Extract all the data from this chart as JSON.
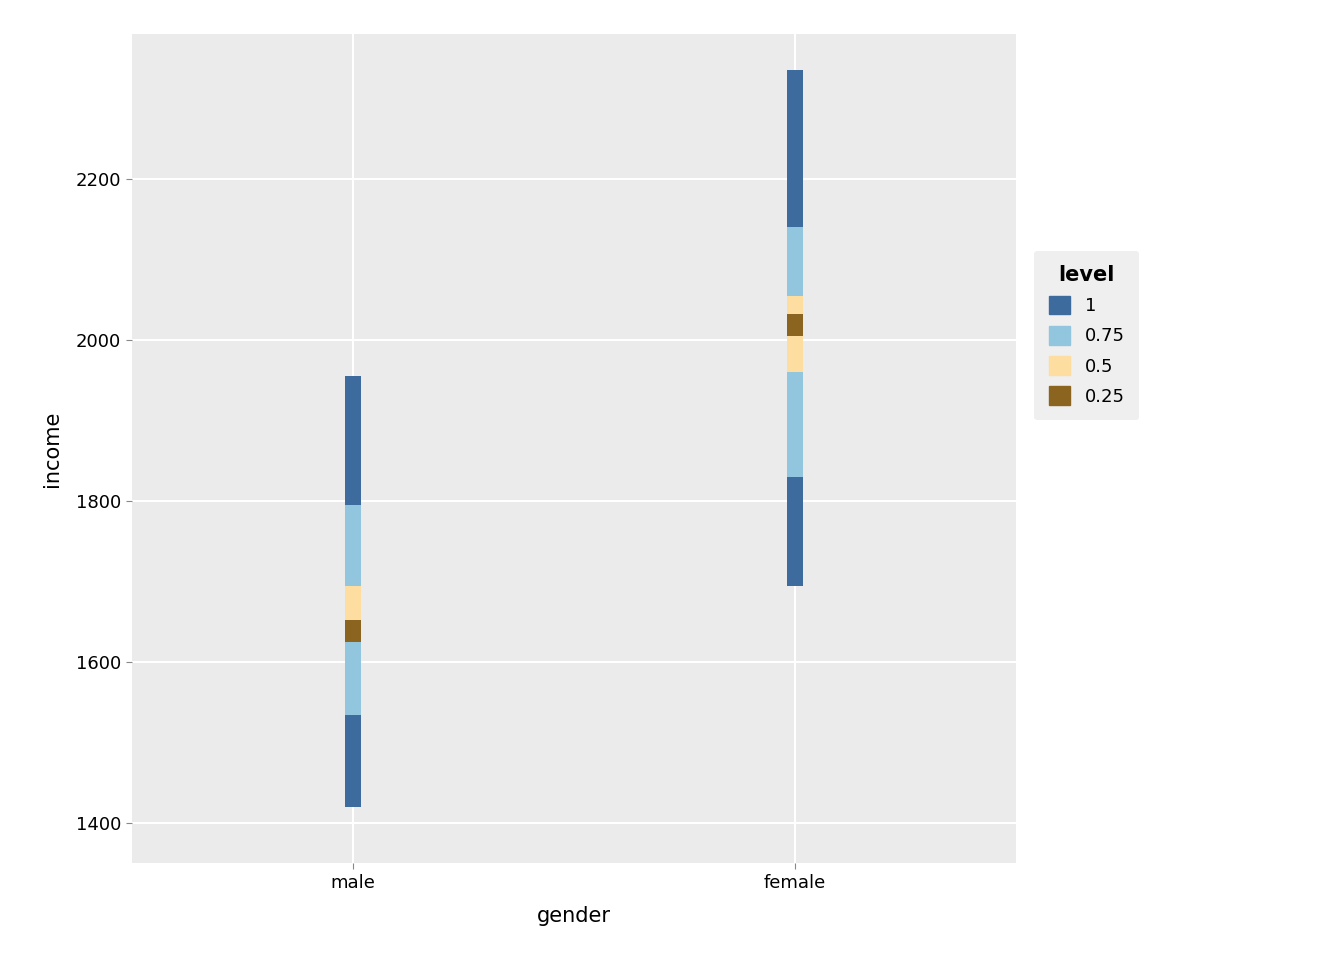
{
  "genders": [
    "male",
    "female"
  ],
  "x_positions": [
    1,
    2
  ],
  "x_labels": [
    "male",
    "female"
  ],
  "background_color": "#EBEBEB",
  "grid_color": "#FFFFFF",
  "xlabel": "gender",
  "ylabel": "income",
  "levels": [
    "1",
    "0.75",
    "0.5",
    "0.25"
  ],
  "colors": {
    "1": "#3E6B9E",
    "0.75": "#92C5DE",
    "0.5": "#FDDDA0",
    "0.25": "#8B6420"
  },
  "male_segments": [
    [
      1420,
      115,
      "1"
    ],
    [
      1535,
      90,
      "0.75"
    ],
    [
      1625,
      28,
      "0.25"
    ],
    [
      1653,
      42,
      "0.5"
    ],
    [
      1695,
      100,
      "0.75"
    ],
    [
      1795,
      160,
      "1"
    ]
  ],
  "female_segments": [
    [
      1695,
      135,
      "1"
    ],
    [
      1830,
      130,
      "0.75"
    ],
    [
      1960,
      45,
      "0.5"
    ],
    [
      2005,
      28,
      "0.25"
    ],
    [
      2033,
      22,
      "0.5"
    ],
    [
      2055,
      85,
      "0.75"
    ],
    [
      2140,
      195,
      "1"
    ]
  ],
  "ylim": [
    1350,
    2380
  ],
  "yticks": [
    1400,
    1600,
    1800,
    2000,
    2200
  ],
  "axis_fontsize": 15,
  "tick_fontsize": 13,
  "legend_title": "level",
  "legend_fontsize": 13
}
